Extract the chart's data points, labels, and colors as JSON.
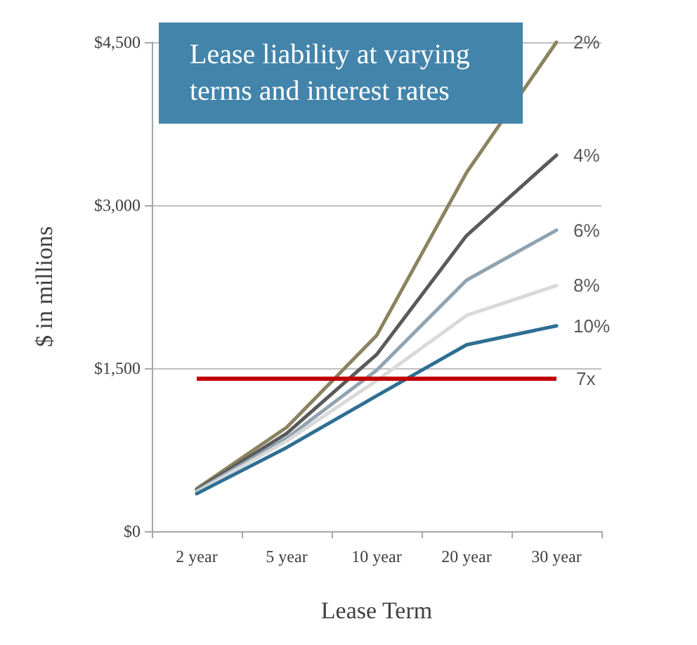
{
  "chart_data": {
    "type": "line",
    "title": "Lease liability at varying terms and interest rates",
    "xlabel": "Lease Term",
    "ylabel": "$ in millions",
    "categories": [
      "2 year",
      "5 year",
      "10 year",
      "20 year",
      "30 year"
    ],
    "series": [
      {
        "name": "2%",
        "color": "#8b8260",
        "values": [
          390,
          955,
          1800,
          3300,
          4500
        ]
      },
      {
        "name": "4%",
        "color": "#5a5a5a",
        "values": [
          380,
          900,
          1625,
          2720,
          3460
        ]
      },
      {
        "name": "6%",
        "color": "#8fa3b0",
        "values": [
          370,
          855,
          1480,
          2310,
          2770
        ]
      },
      {
        "name": "8%",
        "color": "#d9d9d9",
        "values": [
          360,
          830,
          1385,
          1985,
          2260
        ]
      },
      {
        "name": "10%",
        "color": "#2e6f93",
        "values": [
          345,
          770,
          1245,
          1715,
          1890
        ]
      }
    ],
    "ylim": [
      0,
      4500
    ],
    "yticks": [
      {
        "value": 0,
        "label": "$0"
      },
      {
        "value": 1500,
        "label": "$1,500"
      },
      {
        "value": 3000,
        "label": "$3,000"
      },
      {
        "value": 4500,
        "label": "$4,500"
      }
    ],
    "ref_lines": [
      {
        "axis": "y",
        "value": 1400,
        "label": "7x",
        "color": "#c00000"
      }
    ],
    "grid": "y",
    "legend": false,
    "marker": "none",
    "line_style": "solid"
  }
}
